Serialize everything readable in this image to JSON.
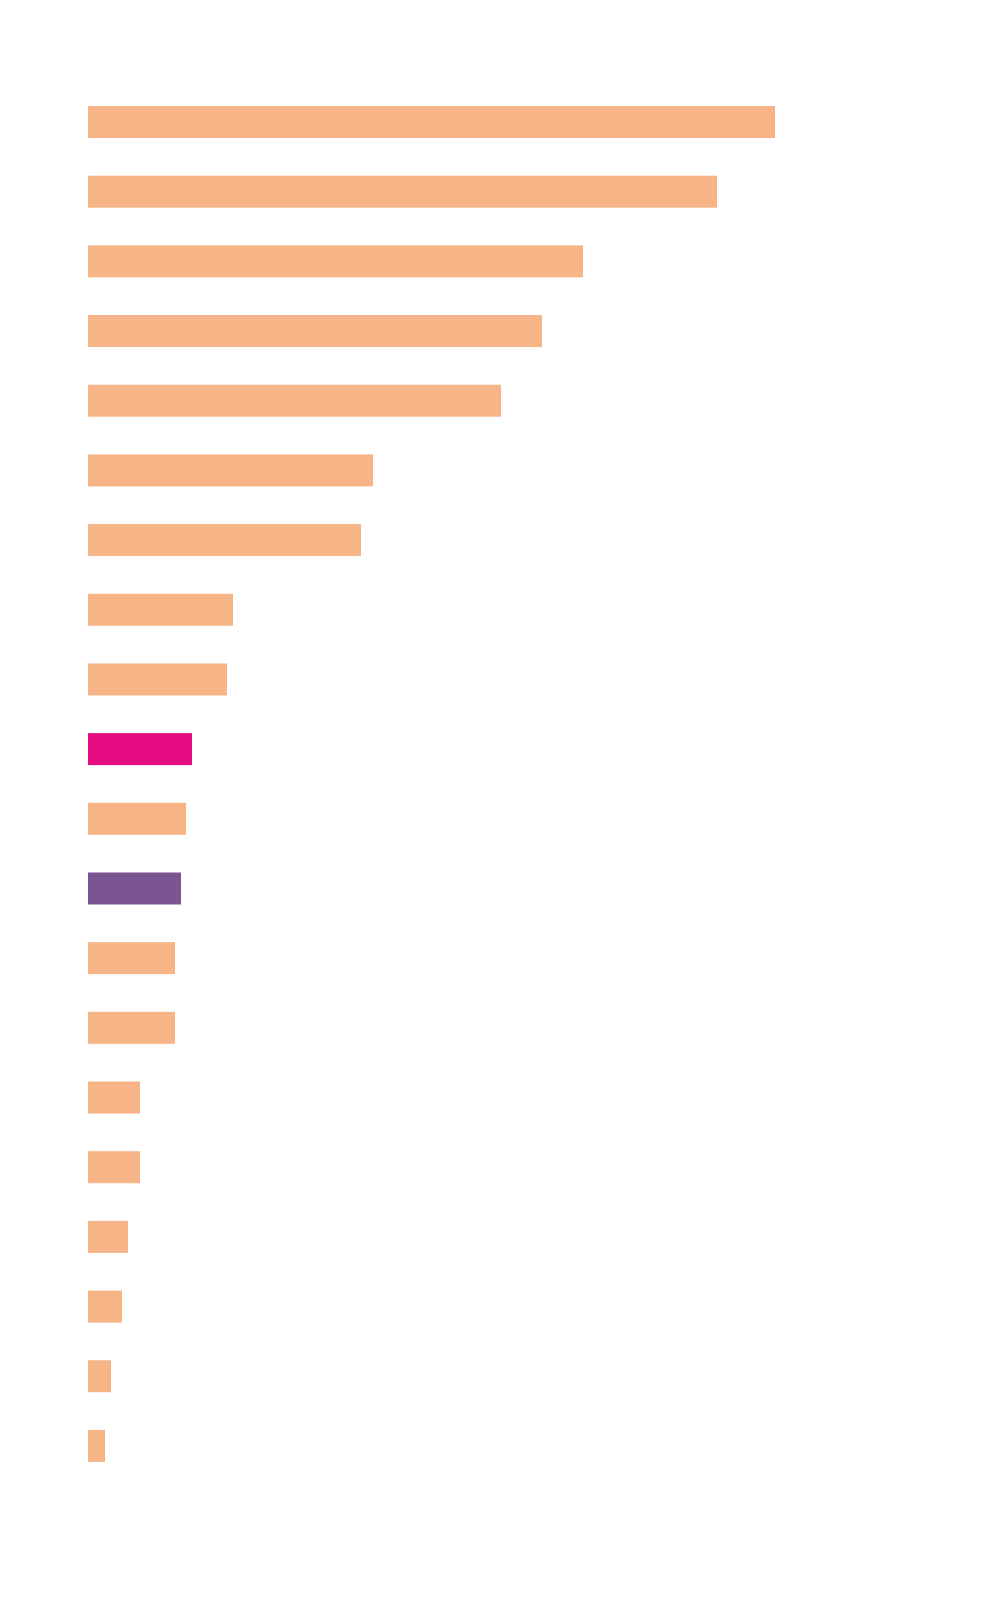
{
  "chart_data": {
    "type": "barh",
    "categories": [
      null,
      null,
      null,
      null,
      null,
      null,
      null,
      null,
      null,
      null,
      null,
      null,
      null,
      null,
      null,
      null,
      null,
      null,
      null,
      null
    ],
    "values": [
      687,
      629,
      495,
      454,
      413,
      285,
      273,
      145,
      139,
      104,
      98,
      93,
      87,
      87,
      52,
      52,
      40,
      34,
      23,
      17
    ],
    "colors": [
      "#f6b487",
      "#f6b487",
      "#f6b487",
      "#f6b487",
      "#f6b487",
      "#f6b487",
      "#f6b487",
      "#f6b487",
      "#f6b487",
      "#e50c82",
      "#f6b487",
      "#7a5592",
      "#f6b487",
      "#f6b487",
      "#f6b487",
      "#f6b487",
      "#f6b487",
      "#f6b487",
      "#f6b487",
      "#f6b487"
    ],
    "xlim": [
      0,
      687
    ]
  }
}
